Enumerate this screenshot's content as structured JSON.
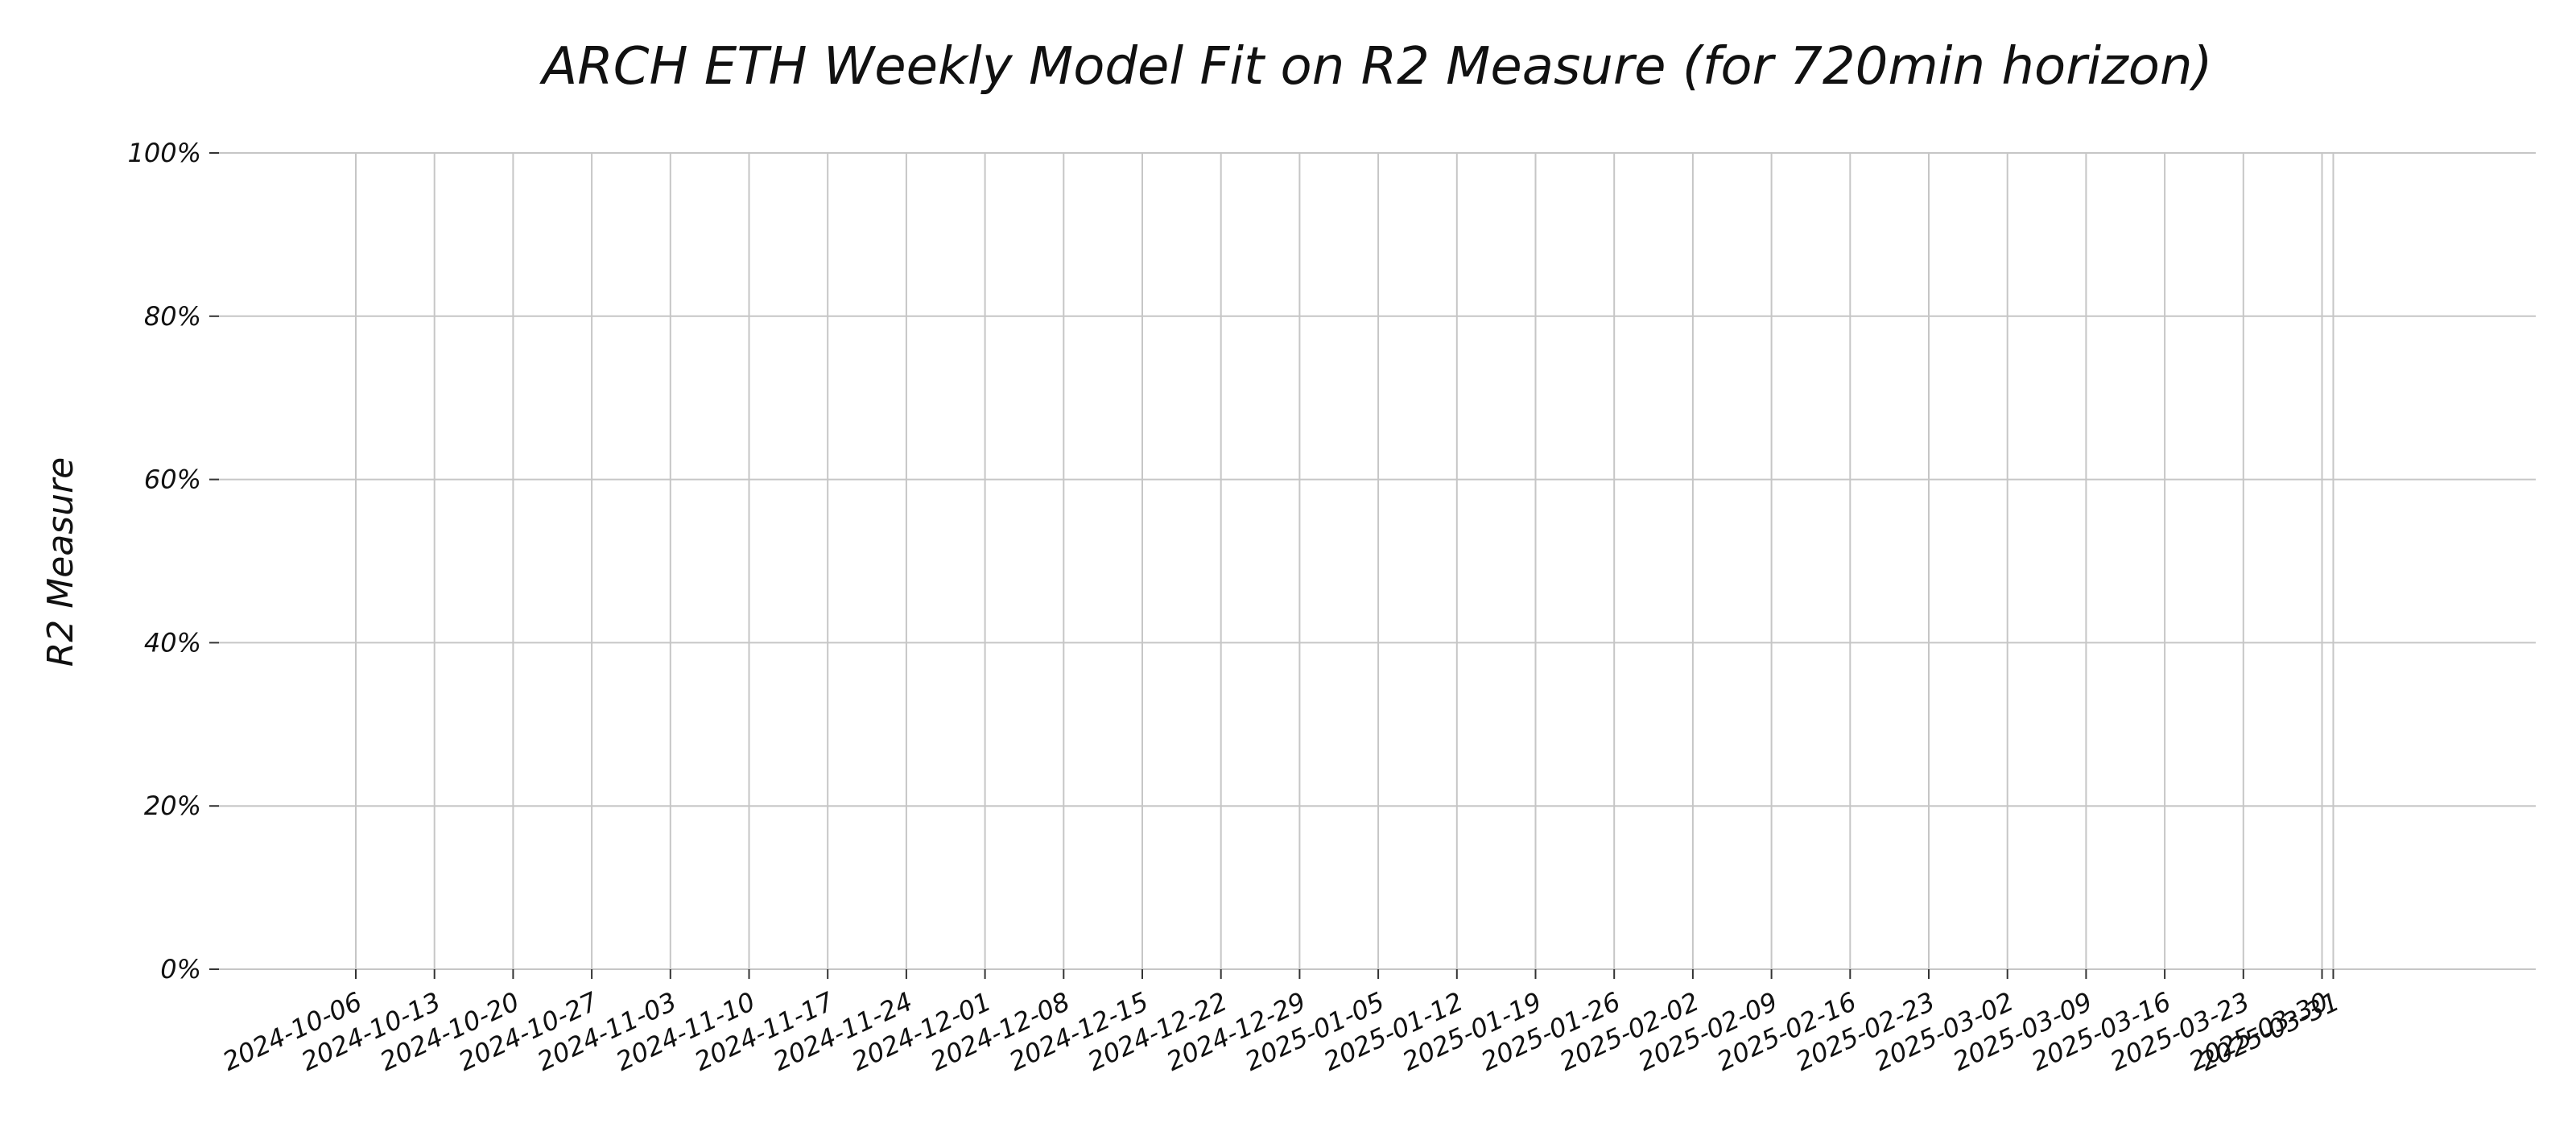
{
  "chart_data": {
    "type": "line",
    "title": "ARCH ETH Weekly Model Fit on R2 Measure (for 720min horizon)",
    "xlabel": "",
    "ylabel": "R2 Measure",
    "x": [
      "2024-10-06",
      "2024-10-13",
      "2024-10-20",
      "2024-10-27",
      "2024-11-03",
      "2024-11-10",
      "2024-11-17",
      "2024-11-24",
      "2024-12-01",
      "2024-12-08",
      "2024-12-15",
      "2024-12-22",
      "2024-12-29",
      "2025-01-05",
      "2025-01-12",
      "2025-01-19",
      "2025-01-26",
      "2025-02-02",
      "2025-02-09",
      "2025-02-16",
      "2025-02-23",
      "2025-03-02",
      "2025-03-09",
      "2025-03-16",
      "2025-03-23",
      "2025-03-30",
      "2025-03-31"
    ],
    "series": [],
    "yticks": [
      0,
      20,
      40,
      60,
      80,
      100
    ],
    "ytick_labels": [
      "0%",
      "20%",
      "40%",
      "60%",
      "80%",
      "100%"
    ],
    "ylim": [
      0,
      100
    ],
    "grid": true,
    "legend": "none"
  }
}
